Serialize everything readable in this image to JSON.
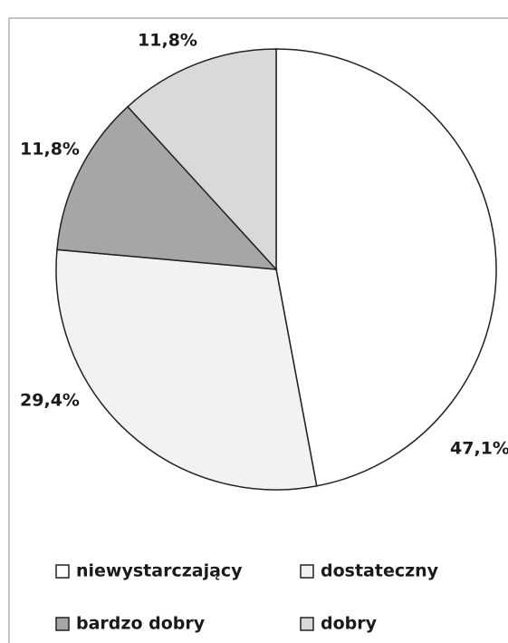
{
  "chart_data": {
    "type": "pie",
    "categories": [
      "niewystarczający",
      "dostateczny",
      "bardzo dobry",
      "dobry"
    ],
    "values": [
      47.1,
      29.4,
      11.8,
      11.8
    ],
    "value_labels": [
      "47,1%",
      "29,4%",
      "11,8%",
      "11,8%"
    ],
    "colors": [
      "#ffffff",
      "#f2f2f2",
      "#a6a6a6",
      "#d9d9d9"
    ],
    "start_angle": 0,
    "direction": "clockwise",
    "legend": "bottom"
  }
}
